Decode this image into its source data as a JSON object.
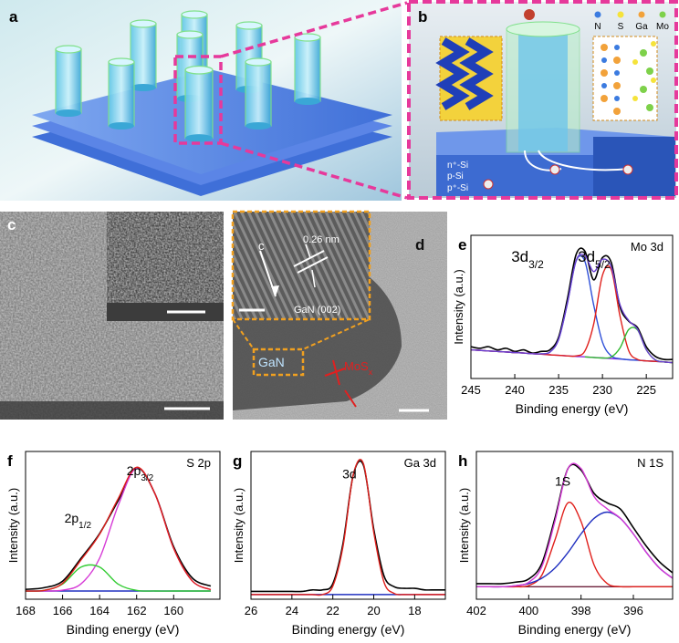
{
  "panels": {
    "a": {
      "label": "a"
    },
    "b": {
      "label": "b",
      "legend": [
        "N",
        "S",
        "Ga",
        "Mo"
      ],
      "layers": [
        "n⁺-Si",
        "p-Si",
        "p⁺-Si"
      ]
    },
    "c": {
      "label": "c"
    },
    "d": {
      "label": "d",
      "axis": "c",
      "spacing": "0.26 nm",
      "plane": "GaN (002)",
      "core": "GaN",
      "shell": {
        "text": "MoS",
        "sub": "x"
      }
    }
  },
  "chart_data": [
    {
      "type": "line",
      "label": "e",
      "title": "Mo 3d",
      "xlabel": "Binding energy (eV)",
      "ylabel": "Intensity (a.u.)",
      "x": [
        245,
        244,
        243,
        242,
        241,
        240,
        239,
        238,
        237,
        236,
        235,
        234,
        233,
        232,
        231,
        230,
        229,
        228,
        227,
        226,
        225,
        224,
        223,
        222
      ],
      "xlim": [
        245,
        222
      ],
      "xticks": [
        245,
        240,
        235,
        230,
        225
      ],
      "ylim": [
        0,
        0.9
      ],
      "annotations": [
        {
          "text": "3d",
          "sub": "3/2"
        },
        {
          "text": "3d",
          "sub": "5/2"
        }
      ],
      "series": [
        {
          "color": "#000000",
          "values": [
            0.2,
            0.19,
            0.2,
            0.18,
            0.19,
            0.17,
            0.18,
            0.16,
            0.17,
            0.18,
            0.26,
            0.5,
            0.78,
            0.8,
            0.62,
            0.76,
            0.73,
            0.45,
            0.36,
            0.32,
            0.2,
            0.14,
            0.12,
            0.12
          ]
        },
        {
          "color": "#8a2be2",
          "values": [
            0.18,
            0.177,
            0.173,
            0.17,
            0.167,
            0.163,
            0.16,
            0.156,
            0.153,
            0.149,
            0.146,
            0.142,
            0.139,
            0.136,
            0.132,
            0.129,
            0.125,
            0.122,
            0.118,
            0.115,
            0.111,
            0.108,
            0.104,
            0.1
          ]
        },
        {
          "color": "#2e4fd8",
          "values": [
            0.18,
            0.177,
            0.173,
            0.17,
            0.167,
            0.163,
            0.16,
            0.156,
            0.155,
            0.166,
            0.246,
            0.472,
            0.739,
            0.736,
            0.462,
            0.229,
            0.142,
            0.124,
            0.118,
            0.115,
            0.111,
            0.108,
            0.104,
            0.1
          ]
        },
        {
          "color": "#e0201c",
          "values": [
            0.18,
            0.177,
            0.173,
            0.17,
            0.167,
            0.163,
            0.16,
            0.156,
            0.153,
            0.149,
            0.146,
            0.142,
            0.142,
            0.173,
            0.342,
            0.649,
            0.685,
            0.392,
            0.174,
            0.12,
            0.111,
            0.108,
            0.104,
            0.1
          ]
        },
        {
          "color": "#2fb82f",
          "values": [
            null,
            null,
            null,
            null,
            null,
            null,
            null,
            null,
            null,
            null,
            null,
            null,
            null,
            0.136,
            0.132,
            0.129,
            0.135,
            0.192,
            0.308,
            0.305,
            0.181,
            0.118,
            0.104,
            0.1
          ]
        },
        {
          "color": "#6a40d0",
          "values": [
            0.18,
            0.177,
            0.173,
            0.17,
            0.167,
            0.163,
            0.16,
            0.156,
            0.155,
            0.166,
            0.246,
            0.472,
            0.742,
            0.773,
            0.672,
            0.749,
            0.702,
            0.464,
            0.364,
            0.31,
            0.181,
            0.118,
            0.104,
            0.1
          ]
        }
      ]
    },
    {
      "type": "line",
      "label": "f",
      "title": "S 2p",
      "xlabel": "Binding energy (eV)",
      "ylabel": "Intensity (a.u.)",
      "x": [
        168,
        167,
        166,
        165,
        164,
        163,
        162,
        161,
        160,
        159,
        158
      ],
      "xlim": [
        168,
        157.5
      ],
      "xticks": [
        168,
        166,
        164,
        162,
        160
      ],
      "ylim": [
        0,
        0.9
      ],
      "annotations": [
        {
          "text": "2p",
          "sub": "1/2"
        },
        {
          "text": "2p",
          "sub": "3/2"
        }
      ],
      "series": [
        {
          "color": "#000000",
          "values": [
            0.06,
            0.07,
            0.11,
            0.25,
            0.4,
            0.6,
            0.8,
            0.64,
            0.32,
            0.13,
            0.08
          ]
        },
        {
          "color": "#2030c0",
          "values": [
            0.05,
            0.05,
            0.05,
            0.05,
            0.05,
            0.05,
            0.05,
            0.05,
            0.05,
            0.05,
            0.05
          ]
        },
        {
          "color": "#d63ad6",
          "values": [
            0.05,
            0.05,
            0.055,
            0.094,
            0.25,
            0.57,
            0.8,
            0.64,
            0.31,
            0.112,
            0.058
          ]
        },
        {
          "color": "#33cc33",
          "values": [
            0.05,
            0.054,
            0.092,
            0.196,
            0.196,
            0.092,
            0.054,
            0.05,
            0.05,
            0.05,
            0.05
          ]
        },
        {
          "color": "#e0201c",
          "values": [
            0.05,
            0.054,
            0.097,
            0.24,
            0.396,
            0.612,
            0.804,
            0.64,
            0.31,
            0.112,
            0.058
          ]
        }
      ]
    },
    {
      "type": "line",
      "label": "g",
      "title": "Ga 3d",
      "xlabel": "Binding energy (eV)",
      "ylabel": "Intensity (a.u.)",
      "x": [
        26,
        25.5,
        25,
        24.5,
        24,
        23.5,
        23,
        22.5,
        22,
        21.5,
        21,
        20.5,
        20,
        19.5,
        19,
        18.5,
        18,
        17.5,
        17,
        16.5
      ],
      "xlim": [
        26,
        16.5
      ],
      "xticks": [
        26,
        24,
        22,
        20,
        18
      ],
      "ylim": [
        0,
        0.95
      ],
      "annotations": [
        {
          "text": "3d"
        }
      ],
      "series": [
        {
          "color": "#000000",
          "values": [
            0.05,
            0.05,
            0.05,
            0.05,
            0.05,
            0.05,
            0.06,
            0.06,
            0.1,
            0.36,
            0.8,
            0.86,
            0.45,
            0.15,
            0.08,
            0.07,
            0.07,
            0.06,
            0.06,
            0.06
          ]
        },
        {
          "color": "#2030c0",
          "values": [
            0.03,
            0.03,
            0.03,
            0.03,
            0.03,
            0.03,
            0.03,
            0.03,
            0.03,
            0.03,
            0.03,
            0.03,
            0.03,
            0.03,
            0.03,
            0.03,
            0.03,
            0.03,
            0.03,
            0.03
          ]
        },
        {
          "color": "#e0201c",
          "values": [
            0.03,
            0.03,
            0.03,
            0.03,
            0.03,
            0.03,
            0.03,
            0.03,
            0.084,
            0.34,
            0.8,
            0.87,
            0.43,
            0.11,
            0.037,
            0.03,
            0.03,
            0.03,
            0.03,
            0.03
          ]
        }
      ]
    },
    {
      "type": "line",
      "label": "h",
      "title": "N 1S",
      "xlabel": "Binding energy (eV)",
      "ylabel": "Intensity (a.u.)",
      "x": [
        402,
        401.5,
        401,
        400.5,
        400,
        399.5,
        399,
        398.5,
        398,
        397.5,
        397,
        396.5,
        396,
        395.5,
        395,
        394.5
      ],
      "xlim": [
        402,
        394.5
      ],
      "xticks": [
        402,
        400,
        398,
        396
      ],
      "ylim": [
        0,
        0.95
      ],
      "annotations": [
        {
          "text": "1S"
        }
      ],
      "series": [
        {
          "color": "#000000",
          "values": [
            0.1,
            0.1,
            0.1,
            0.11,
            0.13,
            0.23,
            0.52,
            0.84,
            0.83,
            0.68,
            0.62,
            0.58,
            0.46,
            0.34,
            0.24,
            0.17
          ]
        },
        {
          "color": "#6b1f3a",
          "values": [
            0.08,
            0.08,
            0.08,
            0.08,
            0.08,
            0.08,
            0.08,
            0.08,
            0.08,
            0.08,
            0.08,
            0.08,
            0.08,
            0.08,
            0.08,
            0.08
          ]
        },
        {
          "color": "#e0201c",
          "values": [
            0.08,
            0.08,
            0.08,
            0.08,
            0.088,
            0.154,
            0.38,
            0.62,
            0.5,
            0.22,
            0.101,
            0.081,
            0.08,
            0.08,
            0.08,
            0.08
          ]
        },
        {
          "color": "#2030c0",
          "values": [
            0.08,
            0.08,
            0.08,
            0.087,
            0.101,
            0.135,
            0.2,
            0.3,
            0.42,
            0.52,
            0.56,
            0.52,
            0.42,
            0.3,
            0.2,
            0.135
          ]
        },
        {
          "color": "#d63ad6",
          "values": [
            0.08,
            0.08,
            0.08,
            0.087,
            0.109,
            0.209,
            0.5,
            0.84,
            0.84,
            0.66,
            0.581,
            0.521,
            0.42,
            0.3,
            0.2,
            0.135
          ]
        }
      ]
    }
  ]
}
